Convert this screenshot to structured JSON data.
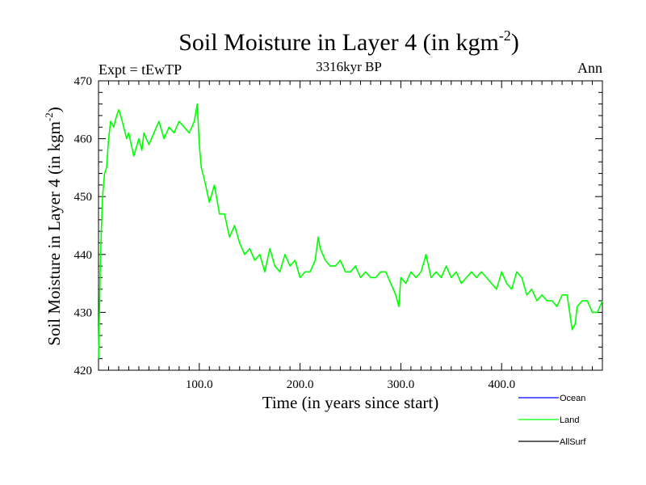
{
  "chart_data": {
    "type": "line",
    "title": "Soil Moisture in Layer 4 (in kgm",
    "title_sup": "-2",
    "title_close": ")",
    "subtitle": "3316kyr BP",
    "expt_label": "Expt = tEwTP",
    "season_label": "Ann",
    "ylabel": "Soil Moisture in Layer 4 (in kgm",
    "ylabel_sup": "-2",
    "ylabel_close": ")",
    "xlabel": "Time (in years since start)",
    "xlim": [
      0,
      500
    ],
    "ylim": [
      420,
      470
    ],
    "x_ticks": [
      100,
      200,
      300,
      400
    ],
    "x_tick_labels": [
      "100.0",
      "200.0",
      "300.0",
      "400.0"
    ],
    "y_ticks": [
      420,
      430,
      440,
      450,
      460,
      470
    ],
    "y_tick_labels": [
      "420",
      "430",
      "440",
      "450",
      "460",
      "470"
    ],
    "legend_position": "bottom-right",
    "series": [
      {
        "name": "Ocean",
        "color": "#0000ff",
        "x": [],
        "values": []
      },
      {
        "name": "Land",
        "color": "#00ff00",
        "x": [
          0,
          2,
          4,
          6,
          8,
          10,
          12,
          15,
          18,
          20,
          22,
          25,
          28,
          30,
          35,
          40,
          43,
          45,
          50,
          55,
          60,
          65,
          70,
          75,
          80,
          85,
          90,
          95,
          98,
          100,
          102,
          105,
          110,
          115,
          120,
          125,
          130,
          135,
          140,
          145,
          150,
          155,
          160,
          165,
          170,
          175,
          180,
          185,
          190,
          195,
          200,
          205,
          210,
          215,
          218,
          220,
          225,
          230,
          235,
          240,
          245,
          250,
          255,
          260,
          265,
          270,
          275,
          280,
          285,
          290,
          295,
          298,
          300,
          305,
          310,
          315,
          320,
          325,
          330,
          335,
          340,
          345,
          350,
          355,
          360,
          365,
          370,
          375,
          380,
          385,
          390,
          395,
          400,
          405,
          410,
          415,
          420,
          425,
          430,
          435,
          440,
          445,
          450,
          455,
          460,
          465,
          470,
          473,
          475,
          480,
          485,
          490,
          495,
          500
        ],
        "values": [
          422,
          440,
          450,
          454,
          455,
          460,
          463,
          462,
          464,
          465,
          464,
          462,
          460,
          461,
          457,
          460,
          458,
          461,
          459,
          461,
          463,
          460,
          462,
          461,
          463,
          462,
          461,
          463,
          466,
          459,
          455,
          453,
          449,
          452,
          447,
          447,
          443,
          445,
          442,
          440,
          441,
          439,
          440,
          437,
          441,
          438,
          437,
          440,
          438,
          439,
          436,
          437,
          437,
          439,
          443,
          441,
          439,
          438,
          438,
          439,
          437,
          437,
          438,
          436,
          437,
          436,
          436,
          437,
          437,
          435,
          433,
          431,
          436,
          435,
          437,
          436,
          437,
          440,
          436,
          437,
          436,
          438,
          436,
          437,
          435,
          436,
          437,
          436,
          437,
          436,
          435,
          434,
          437,
          435,
          434,
          437,
          436,
          433,
          434,
          432,
          433,
          432,
          432,
          431,
          433,
          433,
          427,
          428,
          431,
          432,
          432,
          430,
          430,
          432
        ]
      },
      {
        "name": "AllSurf",
        "color": "#000000",
        "x": [],
        "values": []
      }
    ]
  }
}
